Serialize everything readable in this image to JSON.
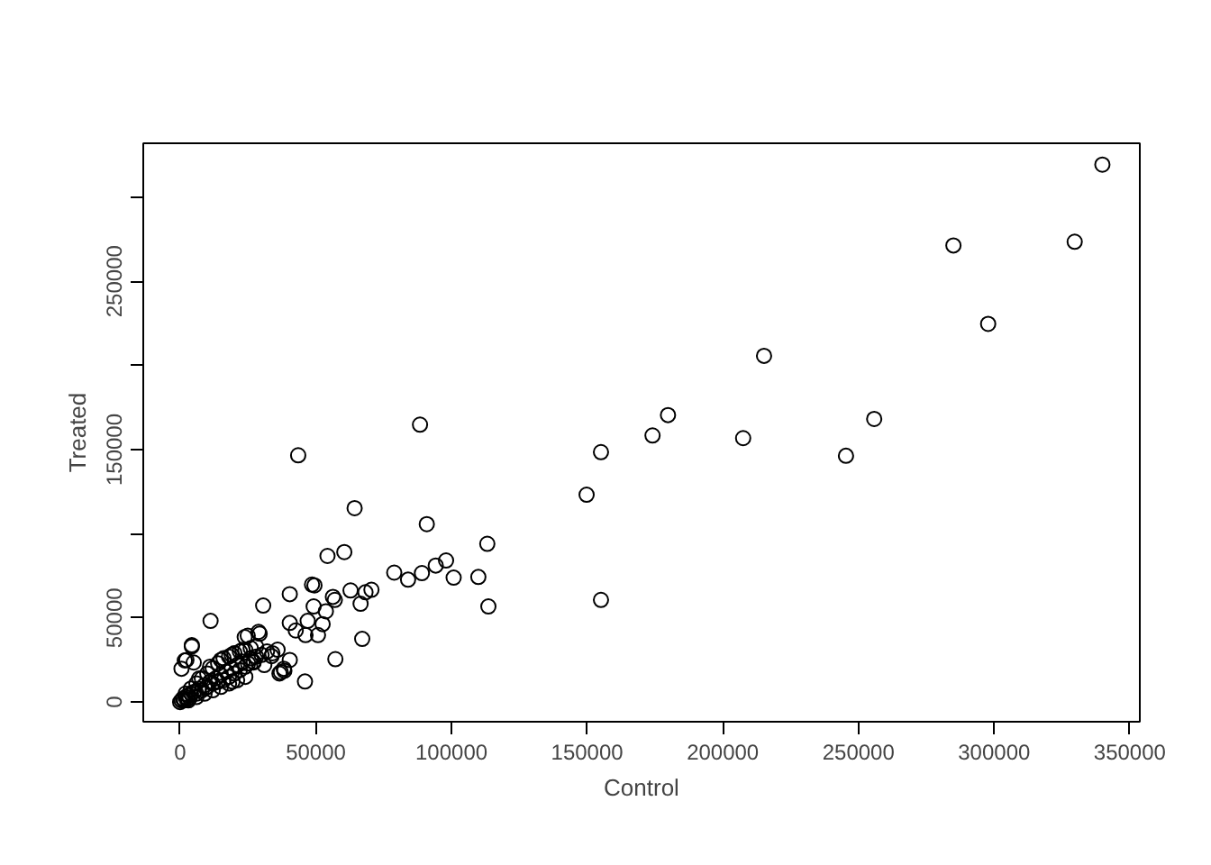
{
  "chart_data": {
    "type": "scatter",
    "xlabel": "Control",
    "ylabel": "Treated",
    "marker": "circle",
    "grid": false,
    "xlim": [
      -13600,
      353700
    ],
    "ylim": [
      -11700,
      332000
    ],
    "xticks": [
      0,
      50000,
      100000,
      150000,
      200000,
      250000,
      300000,
      350000
    ],
    "yticks": [
      0,
      50000,
      {
        "value": 100000,
        "label": null
      },
      150000,
      {
        "value": 200000,
        "label": null
      },
      250000,
      {
        "value": 300000,
        "label": null
      }
    ],
    "series": [
      {
        "color": "#000000",
        "x": [
          339900,
          285000,
          329700,
          297800,
          215200,
          179800,
          174100,
          207500,
          255800,
          245400,
          155100,
          149800,
          155100,
          88400,
          43500,
          64300,
          90900,
          113200,
          54300,
          60500,
          98000,
          94200,
          78900,
          89100,
          84000,
          100800,
          109900,
          113600,
          70500,
          68300,
          66500,
          62800,
          56300,
          57000,
          48600,
          49500,
          40400,
          30600,
          49200,
          53700,
          47000,
          40400,
          42600,
          50800,
          46200,
          52500,
          67100,
          57200,
          46000,
          11200,
          37100,
          38400,
          29300,
          23800,
          4300,
          2300,
          500,
          35900,
          40400,
          33700,
          27100,
          19300,
          13800,
          9400,
          24900,
          28900,
          4300,
          1700,
          5000,
          36600,
          38200,
          0,
          500,
          1000,
          1500,
          2000,
          2500,
          3000,
          3500,
          4000,
          5000,
          6000,
          7000,
          8000,
          9000,
          10000,
          11000,
          12000,
          13000,
          14000,
          15000,
          16000,
          17000,
          18000,
          19000,
          20000,
          21000,
          22000,
          23000,
          24000,
          25000,
          26000,
          27000,
          28000,
          30000,
          32000,
          2000,
          4000,
          6000,
          8000,
          10000,
          12000,
          14000,
          16000,
          18000,
          20000,
          22000,
          24000,
          26000,
          28000,
          3000,
          6000,
          9000,
          12000,
          15000,
          18000,
          21000,
          24000,
          7000,
          11000,
          15000,
          19000,
          23000,
          31000,
          34000
        ],
        "values": [
          319300,
          271300,
          273500,
          224700,
          205700,
          170500,
          158400,
          156800,
          168200,
          146300,
          148500,
          123200,
          60700,
          164800,
          146600,
          115200,
          105700,
          94000,
          86800,
          89100,
          84100,
          81100,
          76900,
          76600,
          72700,
          73900,
          74300,
          56800,
          66700,
          65200,
          58400,
          66300,
          62500,
          60700,
          69800,
          69300,
          64100,
          57300,
          56800,
          53900,
          48200,
          47000,
          42500,
          39800,
          39800,
          46300,
          37500,
          25500,
          12200,
          48200,
          17800,
          18600,
          40600,
          38600,
          33000,
          25000,
          19800,
          31100,
          25000,
          27300,
          23500,
          12200,
          12200,
          8400,
          39400,
          41700,
          33800,
          24700,
          23500,
          17000,
          19800,
          0,
          1000,
          2000,
          1000,
          3000,
          1500,
          4000,
          2500,
          5000,
          6000,
          5000,
          8000,
          7000,
          10000,
          9000,
          12000,
          11000,
          14000,
          12000,
          16000,
          13000,
          18000,
          15000,
          20000,
          17000,
          22000,
          19000,
          24000,
          21000,
          23000,
          26000,
          24000,
          27000,
          28000,
          30000,
          5000,
          8000,
          11000,
          14000,
          17000,
          20000,
          23000,
          26000,
          27000,
          29000,
          30000,
          31000,
          32000,
          33000,
          1000,
          3000,
          5000,
          7000,
          9000,
          11000,
          13000,
          15000,
          14000,
          21000,
          25000,
          28000,
          31000,
          22000,
          29000
        ]
      }
    ]
  }
}
